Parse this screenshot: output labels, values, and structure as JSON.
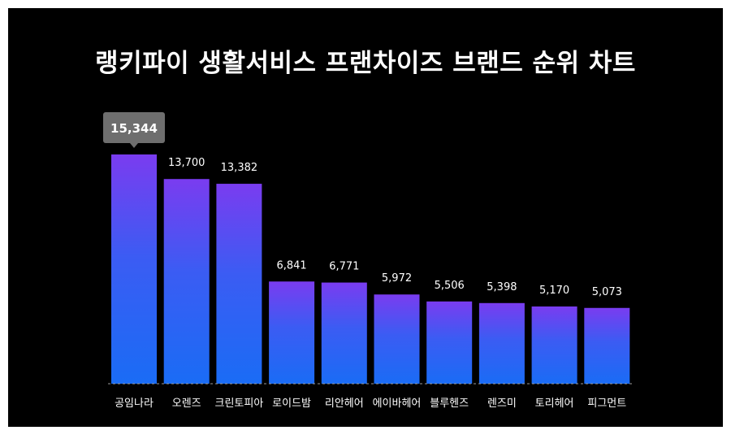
{
  "title": "랭키파이 생활서비스 프랜차이즈 브랜드 순위 차트",
  "colors": {
    "background": "#000000",
    "bar_top": "#7a3cf0",
    "bar_bottom": "#1a6cf5",
    "highlight_box": "#6e6e6e",
    "text": "#ffffff"
  },
  "chart_data": {
    "type": "bar",
    "title": "랭키파이 생활서비스 프랜차이즈 브랜드 순위 차트",
    "categories": [
      "공임나라",
      "오렌즈",
      "크린토피아",
      "로이드밤",
      "리안헤어",
      "에이바헤어",
      "블루헨즈",
      "렌즈미",
      "토리헤어",
      "피그먼트"
    ],
    "values": [
      15344,
      13700,
      13382,
      6841,
      6771,
      5972,
      5506,
      5398,
      5170,
      5073
    ],
    "value_labels": [
      "15,344",
      "13,700",
      "13,382",
      "6,841",
      "6,771",
      "5,972",
      "5,506",
      "5,398",
      "5,170",
      "5,073"
    ],
    "highlighted_index": 0,
    "xlabel": "",
    "ylabel": "",
    "ylim": [
      0,
      15344
    ],
    "grid": false,
    "legend": "none"
  }
}
